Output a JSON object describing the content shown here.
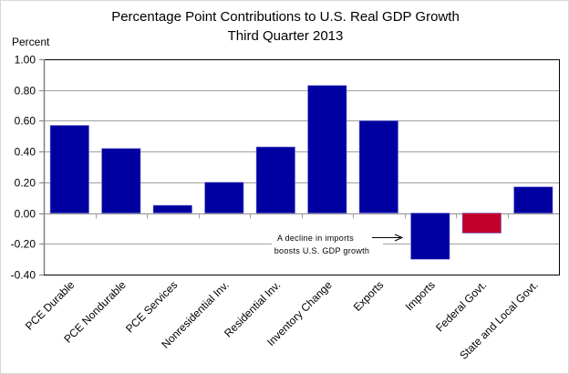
{
  "chart_data": {
    "type": "bar",
    "title": "Percentage Point Contributions to U.S. Real GDP Growth",
    "subtitle": "Third Quarter 2013",
    "xlabel": "",
    "ylabel": "Percent",
    "ylim": [
      -0.4,
      1.0
    ],
    "yticks": [
      1.0,
      0.8,
      0.6,
      0.4,
      0.2,
      0.0,
      -0.2,
      -0.4
    ],
    "ytick_labels": [
      "1.00",
      "0.80",
      "0.60",
      "0.40",
      "0.20",
      "0.00",
      "-0.20",
      "-0.40"
    ],
    "grid": true,
    "legend": "none",
    "categories": [
      "PCE Durable",
      "PCE Nondurable",
      "PCE Services",
      "Nonresidential Inv.",
      "Residential Inv.",
      "Inventory Change",
      "Exports",
      "Imports",
      "Federal Govt.",
      "State and Local Govt."
    ],
    "values": [
      0.57,
      0.42,
      0.05,
      0.2,
      0.43,
      0.83,
      0.6,
      -0.3,
      -0.13,
      0.17
    ],
    "bar_colors": [
      "#0000A0",
      "#0000A0",
      "#0000A0",
      "#0000A0",
      "#0000A0",
      "#0000A0",
      "#0000A0",
      "#0000A0",
      "#C0002A",
      "#0000A0"
    ],
    "annotation": {
      "lines": [
        "A decline in imports",
        "boosts U.S. GDP growth"
      ],
      "arrow_points_to": "Imports"
    }
  },
  "colors": {
    "primary_bar": "#0000A0",
    "highlight_bar": "#C0002A",
    "gridline": "#a0a0a0",
    "axis": "#000000"
  }
}
